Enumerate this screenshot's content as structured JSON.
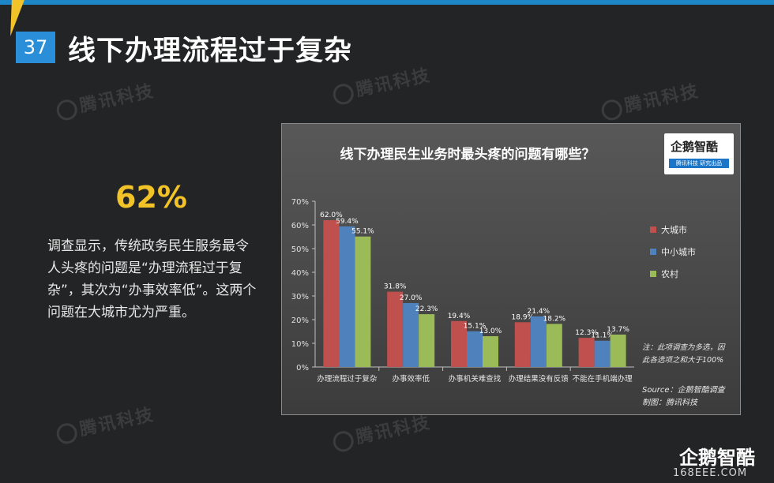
{
  "slide": {
    "number": "37",
    "title": "线下办理流程过于复杂",
    "highlight": "62%",
    "description": "调查显示，传统政务民生服务最令人头疼的问题是“办理流程过于复杂”，其次为“办事效率低”。这两个问题在大城市尤为严重。",
    "watermark": "腾讯科技",
    "brand": "企鹅智酷",
    "site": "168EEE.COM"
  },
  "chart": {
    "logo_main": "企鹅智酷",
    "logo_sub": "腾讯科技  研究出品",
    "note_line1": "注：此项调查为多选，因",
    "note_line2": "此各选项之和大于100%",
    "source": "Source：企鹅智酷调查",
    "made_by": "制图：腾讯科技"
  },
  "chart_data": {
    "type": "bar",
    "title": "线下办理民生业务时最头疼的问题有哪些？",
    "categories": [
      "办理流程过于复杂",
      "办事效率低",
      "办事机关难查找",
      "办理结果没有反馈",
      "不能在手机端办理"
    ],
    "series": [
      {
        "name": "大城市",
        "color": "#c0504d",
        "values": [
          62.0,
          31.8,
          19.4,
          18.9,
          12.3
        ]
      },
      {
        "name": "中小城市",
        "color": "#4f81bd",
        "values": [
          59.4,
          27.0,
          15.1,
          21.4,
          11.1
        ]
      },
      {
        "name": "农村",
        "color": "#9bbb59",
        "values": [
          55.1,
          22.3,
          13.0,
          18.2,
          13.7
        ]
      }
    ],
    "ylim": [
      0,
      70
    ],
    "yticks": [
      "0%",
      "10%",
      "20%",
      "30%",
      "40%",
      "50%",
      "60%",
      "70%"
    ],
    "value_suffix": "%",
    "legend": "right",
    "grid": false
  }
}
